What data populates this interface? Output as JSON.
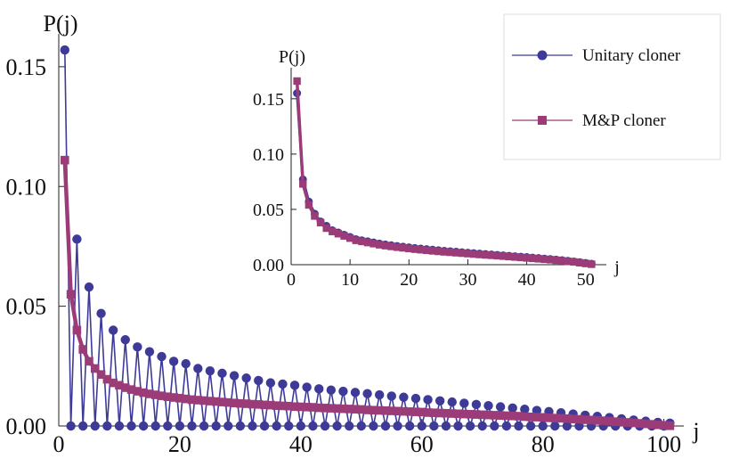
{
  "legend": {
    "placement": "top-right",
    "items": [
      {
        "label": "Unitary cloner",
        "color": "#3d3a98",
        "marker": "circle"
      },
      {
        "label": "M&P cloner",
        "color": "#9b3c78",
        "marker": "square"
      }
    ]
  },
  "chart_data": [
    {
      "id": "main",
      "type": "line",
      "xlabel": "j",
      "ylabel": "P(j)",
      "xlim": [
        0,
        103
      ],
      "ylim": [
        0,
        0.16
      ],
      "xticks": [
        0,
        20,
        40,
        60,
        80,
        100
      ],
      "yticks": [
        0.0,
        0.05,
        0.1,
        0.15
      ],
      "ytick_labels": [
        "0.00",
        "0.05",
        "0.10",
        "0.15"
      ],
      "grid": false,
      "series": [
        {
          "name": "Unitary cloner",
          "color": "#3d3a98",
          "marker": "circle",
          "x": [
            1,
            2,
            3,
            4,
            5,
            6,
            7,
            8,
            9,
            10,
            11,
            12,
            13,
            14,
            15,
            16,
            17,
            18,
            19,
            20,
            21,
            22,
            23,
            24,
            25,
            26,
            27,
            28,
            29,
            30,
            31,
            32,
            33,
            34,
            35,
            36,
            37,
            38,
            39,
            40,
            41,
            42,
            43,
            44,
            45,
            46,
            47,
            48,
            49,
            50,
            51,
            52,
            53,
            54,
            55,
            56,
            57,
            58,
            59,
            60,
            61,
            62,
            63,
            64,
            65,
            66,
            67,
            68,
            69,
            70,
            71,
            72,
            73,
            74,
            75,
            76,
            77,
            78,
            79,
            80,
            81,
            82,
            83,
            84,
            85,
            86,
            87,
            88,
            89,
            90,
            91,
            92,
            93,
            94,
            95,
            96,
            97,
            98,
            99,
            100,
            101
          ],
          "values": [
            0.157,
            0,
            0.078,
            0,
            0.058,
            0,
            0.047,
            0,
            0.04,
            0,
            0.036,
            0,
            0.033,
            0,
            0.031,
            0,
            0.029,
            0,
            0.027,
            0,
            0.026,
            0,
            0.024,
            0,
            0.023,
            0,
            0.022,
            0,
            0.021,
            0,
            0.02,
            0,
            0.019,
            0,
            0.018,
            0,
            0.0175,
            0,
            0.017,
            0,
            0.0162,
            0,
            0.0155,
            0,
            0.015,
            0,
            0.0145,
            0,
            0.014,
            0,
            0.0135,
            0,
            0.013,
            0,
            0.0125,
            0,
            0.012,
            0,
            0.0115,
            0,
            0.011,
            0,
            0.0105,
            0,
            0.01,
            0,
            0.0095,
            0,
            0.009,
            0,
            0.0085,
            0,
            0.008,
            0,
            0.0075,
            0,
            0.007,
            0,
            0.0065,
            0,
            0.006,
            0,
            0.0055,
            0,
            0.005,
            0,
            0.0045,
            0,
            0.004,
            0,
            0.0035,
            0,
            0.003,
            0,
            0.0025,
            0,
            0.002,
            0,
            0.0015,
            0,
            0.0012
          ]
        },
        {
          "name": "M&P cloner",
          "color": "#9b3c78",
          "marker": "square",
          "x": [
            1,
            2,
            3,
            4,
            5,
            6,
            7,
            8,
            9,
            10,
            11,
            12,
            13,
            14,
            15,
            16,
            17,
            18,
            19,
            20,
            21,
            22,
            23,
            24,
            25,
            26,
            27,
            28,
            29,
            30,
            31,
            32,
            33,
            34,
            35,
            36,
            37,
            38,
            39,
            40,
            41,
            42,
            43,
            44,
            45,
            46,
            47,
            48,
            49,
            50,
            51,
            52,
            53,
            54,
            55,
            56,
            57,
            58,
            59,
            60,
            61,
            62,
            63,
            64,
            65,
            66,
            67,
            68,
            69,
            70,
            71,
            72,
            73,
            74,
            75,
            76,
            77,
            78,
            79,
            80,
            81,
            82,
            83,
            84,
            85,
            86,
            87,
            88,
            89,
            90,
            91,
            92,
            93,
            94,
            95,
            96,
            97,
            98,
            99,
            100,
            101
          ],
          "values": [
            0.111,
            0.055,
            0.04,
            0.032,
            0.027,
            0.024,
            0.0215,
            0.0195,
            0.018,
            0.017,
            0.016,
            0.0152,
            0.0145,
            0.0139,
            0.0134,
            0.013,
            0.0126,
            0.0122,
            0.0119,
            0.0116,
            0.0113,
            0.011,
            0.0108,
            0.0106,
            0.0104,
            0.0102,
            0.01,
            0.0098,
            0.0096,
            0.0094,
            0.0093,
            0.0091,
            0.009,
            0.0088,
            0.0087,
            0.0085,
            0.0084,
            0.0083,
            0.0081,
            0.008,
            0.0079,
            0.0078,
            0.0076,
            0.0075,
            0.0074,
            0.0073,
            0.0072,
            0.0071,
            0.007,
            0.0069,
            0.0067,
            0.0066,
            0.0065,
            0.0064,
            0.0063,
            0.0062,
            0.0061,
            0.006,
            0.0059,
            0.0058,
            0.0056,
            0.0055,
            0.0054,
            0.0053,
            0.0052,
            0.0051,
            0.005,
            0.0049,
            0.0048,
            0.0047,
            0.0046,
            0.0045,
            0.0044,
            0.0043,
            0.0042,
            0.0041,
            0.0039,
            0.0038,
            0.0037,
            0.0036,
            0.0034,
            0.0033,
            0.0032,
            0.0031,
            0.0029,
            0.0028,
            0.0026,
            0.0025,
            0.0023,
            0.0022,
            0.002,
            0.0018,
            0.0017,
            0.0015,
            0.0013,
            0.0011,
            0.0009,
            0.0007,
            0.0005,
            0.0003,
            0.0001
          ]
        }
      ]
    },
    {
      "id": "inset",
      "type": "line",
      "xlabel": "j",
      "ylabel": "P(j)",
      "xlim": [
        0,
        52
      ],
      "ylim": [
        0,
        0.17
      ],
      "xticks": [
        0,
        10,
        20,
        30,
        40,
        50
      ],
      "yticks": [
        0.0,
        0.05,
        0.1,
        0.15
      ],
      "ytick_labels": [
        "0.00",
        "0.05",
        "0.10",
        "0.15"
      ],
      "grid": false,
      "series": [
        {
          "name": "Unitary cloner",
          "color": "#3d3a98",
          "marker": "circle",
          "x": [
            1,
            2,
            3,
            4,
            5,
            6,
            7,
            8,
            9,
            10,
            11,
            12,
            13,
            14,
            15,
            16,
            17,
            18,
            19,
            20,
            21,
            22,
            23,
            24,
            25,
            26,
            27,
            28,
            29,
            30,
            31,
            32,
            33,
            34,
            35,
            36,
            37,
            38,
            39,
            40,
            41,
            42,
            43,
            44,
            45,
            46,
            47,
            48,
            49,
            50,
            51
          ],
          "values": [
            0.155,
            0.077,
            0.057,
            0.046,
            0.039,
            0.035,
            0.031,
            0.029,
            0.027,
            0.025,
            0.023,
            0.022,
            0.021,
            0.02,
            0.019,
            0.0182,
            0.0175,
            0.0168,
            0.0162,
            0.0156,
            0.015,
            0.0145,
            0.014,
            0.0135,
            0.013,
            0.0125,
            0.0121,
            0.0117,
            0.0112,
            0.0108,
            0.0104,
            0.01,
            0.0096,
            0.0092,
            0.0088,
            0.0084,
            0.008,
            0.0076,
            0.0072,
            0.0068,
            0.0063,
            0.0059,
            0.0054,
            0.005,
            0.0045,
            0.004,
            0.0034,
            0.0028,
            0.0022,
            0.0015,
            0.0008
          ]
        },
        {
          "name": "M&P cloner",
          "color": "#9b3c78",
          "marker": "square",
          "x": [
            1,
            2,
            3,
            4,
            5,
            6,
            7,
            8,
            9,
            10,
            11,
            12,
            13,
            14,
            15,
            16,
            17,
            18,
            19,
            20,
            21,
            22,
            23,
            24,
            25,
            26,
            27,
            28,
            29,
            30,
            31,
            32,
            33,
            34,
            35,
            36,
            37,
            38,
            39,
            40,
            41,
            42,
            43,
            44,
            45,
            46,
            47,
            48,
            49,
            50,
            51
          ],
          "values": [
            0.166,
            0.073,
            0.054,
            0.044,
            0.038,
            0.033,
            0.03,
            0.028,
            0.026,
            0.024,
            0.022,
            0.021,
            0.02,
            0.019,
            0.018,
            0.0172,
            0.0165,
            0.0158,
            0.0152,
            0.0146,
            0.014,
            0.0135,
            0.013,
            0.0125,
            0.012,
            0.0116,
            0.0112,
            0.0108,
            0.0104,
            0.01,
            0.0096,
            0.0092,
            0.0088,
            0.0085,
            0.0081,
            0.0077,
            0.0073,
            0.0069,
            0.0065,
            0.0061,
            0.0057,
            0.0053,
            0.0049,
            0.0045,
            0.004,
            0.0035,
            0.003,
            0.0025,
            0.0018,
            0.0011,
            0.0004
          ]
        }
      ]
    }
  ]
}
